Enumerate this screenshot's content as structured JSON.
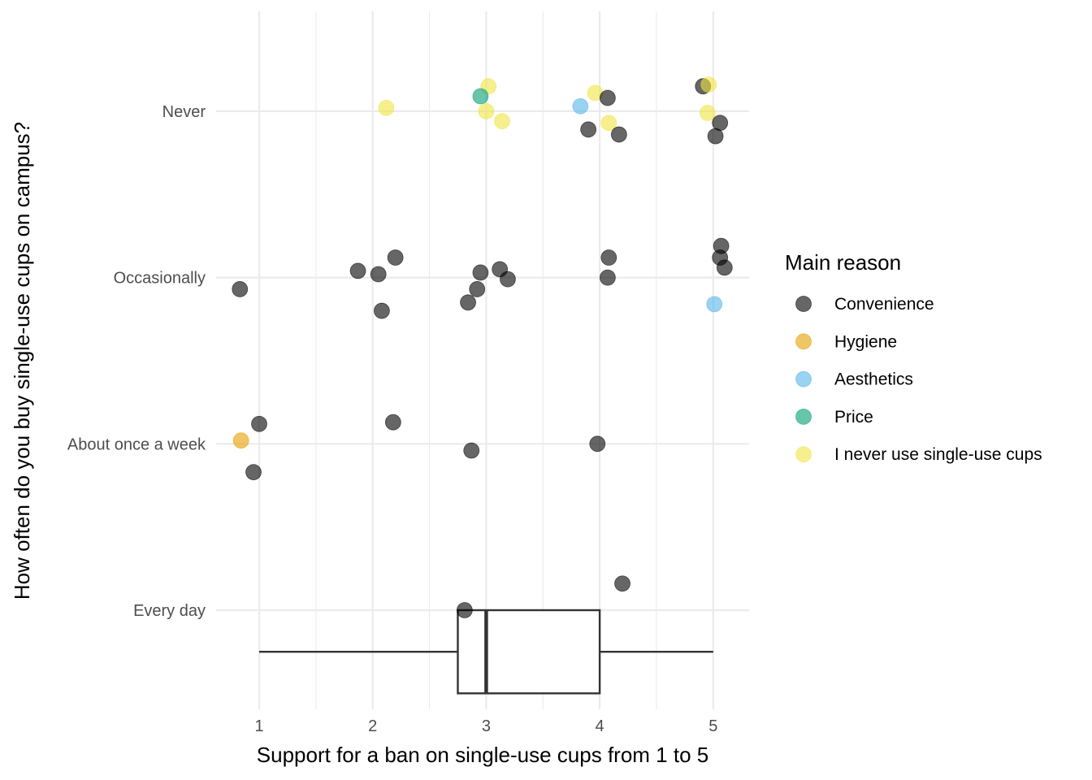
{
  "chart_data": {
    "type": "scatter",
    "overlay": "boxplot",
    "xlabel": "Support for a ban on single-use cups from 1 to 5",
    "ylabel": "How often do you buy single-use cups on campus?",
    "xlim": [
      0.65,
      5.3
    ],
    "x_ticks": [
      "1",
      "2",
      "3",
      "4",
      "5"
    ],
    "categories": [
      "Every day",
      "About once a week",
      "Occasionally",
      "Never"
    ],
    "legend": {
      "title": "Main reason",
      "position": "right",
      "entries": [
        {
          "name": "Convenience",
          "color": "#000000"
        },
        {
          "name": "Hygiene",
          "color": "#E69F00"
        },
        {
          "name": "Aesthetics",
          "color": "#56B4E9"
        },
        {
          "name": "Price",
          "color": "#009E73"
        },
        {
          "name": "I never use single-use cups",
          "color": "#F0E442"
        }
      ]
    },
    "grid": true,
    "point_alpha": 0.6,
    "points": [
      {
        "x": 4.2,
        "y": 1.16,
        "reason": "Convenience"
      },
      {
        "x": 2.81,
        "y": 1.0,
        "reason": "Convenience"
      },
      {
        "x": 1.0,
        "y": 2.12,
        "reason": "Convenience"
      },
      {
        "x": 0.95,
        "y": 1.83,
        "reason": "Convenience"
      },
      {
        "x": 0.84,
        "y": 2.02,
        "reason": "Hygiene"
      },
      {
        "x": 2.18,
        "y": 2.13,
        "reason": "Convenience"
      },
      {
        "x": 2.87,
        "y": 1.96,
        "reason": "Convenience"
      },
      {
        "x": 3.98,
        "y": 2.0,
        "reason": "Convenience"
      },
      {
        "x": 0.83,
        "y": 2.93,
        "reason": "Convenience"
      },
      {
        "x": 1.87,
        "y": 3.04,
        "reason": "Convenience"
      },
      {
        "x": 2.05,
        "y": 3.02,
        "reason": "Convenience"
      },
      {
        "x": 2.2,
        "y": 3.12,
        "reason": "Convenience"
      },
      {
        "x": 2.08,
        "y": 2.8,
        "reason": "Convenience"
      },
      {
        "x": 2.84,
        "y": 2.85,
        "reason": "Convenience"
      },
      {
        "x": 2.92,
        "y": 2.93,
        "reason": "Convenience"
      },
      {
        "x": 2.95,
        "y": 3.03,
        "reason": "Convenience"
      },
      {
        "x": 3.12,
        "y": 3.05,
        "reason": "Convenience"
      },
      {
        "x": 3.19,
        "y": 2.99,
        "reason": "Convenience"
      },
      {
        "x": 4.07,
        "y": 3.0,
        "reason": "Convenience"
      },
      {
        "x": 4.08,
        "y": 3.12,
        "reason": "Convenience"
      },
      {
        "x": 5.07,
        "y": 3.19,
        "reason": "Convenience"
      },
      {
        "x": 5.06,
        "y": 3.12,
        "reason": "Convenience"
      },
      {
        "x": 5.1,
        "y": 3.06,
        "reason": "Convenience"
      },
      {
        "x": 5.01,
        "y": 2.84,
        "reason": "Aesthetics"
      },
      {
        "x": 2.12,
        "y": 4.02,
        "reason": "I never use single-use cups"
      },
      {
        "x": 3.02,
        "y": 4.15,
        "reason": "I never use single-use cups"
      },
      {
        "x": 3.0,
        "y": 4.0,
        "reason": "I never use single-use cups"
      },
      {
        "x": 3.14,
        "y": 3.94,
        "reason": "I never use single-use cups"
      },
      {
        "x": 2.95,
        "y": 4.09,
        "reason": "Price"
      },
      {
        "x": 3.83,
        "y": 4.03,
        "reason": "Aesthetics"
      },
      {
        "x": 3.96,
        "y": 4.11,
        "reason": "I never use single-use cups"
      },
      {
        "x": 4.07,
        "y": 4.08,
        "reason": "Convenience"
      },
      {
        "x": 3.9,
        "y": 3.89,
        "reason": "Convenience"
      },
      {
        "x": 4.08,
        "y": 3.93,
        "reason": "I never use single-use cups"
      },
      {
        "x": 4.17,
        "y": 3.86,
        "reason": "Convenience"
      },
      {
        "x": 4.91,
        "y": 4.15,
        "reason": "Convenience"
      },
      {
        "x": 4.96,
        "y": 4.16,
        "reason": "I never use single-use cups"
      },
      {
        "x": 4.95,
        "y": 3.99,
        "reason": "I never use single-use cups"
      },
      {
        "x": 5.06,
        "y": 3.93,
        "reason": "Convenience"
      },
      {
        "x": 5.02,
        "y": 3.85,
        "reason": "Convenience"
      }
    ],
    "boxplot": {
      "category": "Every day",
      "min": 1.0,
      "q1": 2.75,
      "median": 3.0,
      "q3": 4.0,
      "max": 5.0
    }
  }
}
